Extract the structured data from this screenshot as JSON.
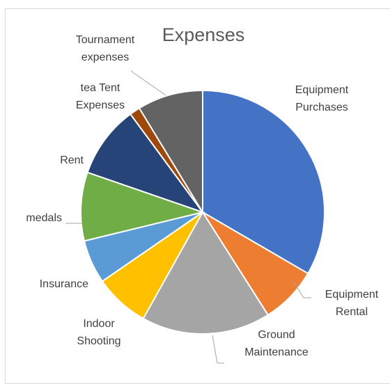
{
  "chart_data": {
    "type": "pie",
    "title": "Expenses",
    "slices": [
      {
        "label": "Equipment Purchases",
        "value": 33.4,
        "color": "#4472C4"
      },
      {
        "label": "Equipment Rental",
        "value": 7.6,
        "color": "#ED7D31"
      },
      {
        "label": "Ground Maintenance",
        "value": 17.1,
        "color": "#A5A5A5"
      },
      {
        "label": "Indoor Shooting",
        "value": 7.3,
        "color": "#FFC000"
      },
      {
        "label": "Insurance",
        "value": 5.8,
        "color": "#5B9BD5"
      },
      {
        "label": "medals",
        "value": 9.1,
        "color": "#70AD47"
      },
      {
        "label": "Rent",
        "value": 9.6,
        "color": "#264478"
      },
      {
        "label": "tea Tent Expenses",
        "value": 1.4,
        "color": "#9E480E"
      },
      {
        "label": "Tournament expenses",
        "value": 8.7,
        "color": "#636363"
      }
    ],
    "start_angle_deg": 0,
    "direction": "clockwise",
    "legend": "none",
    "data_labels": "category names outside with leader lines"
  }
}
